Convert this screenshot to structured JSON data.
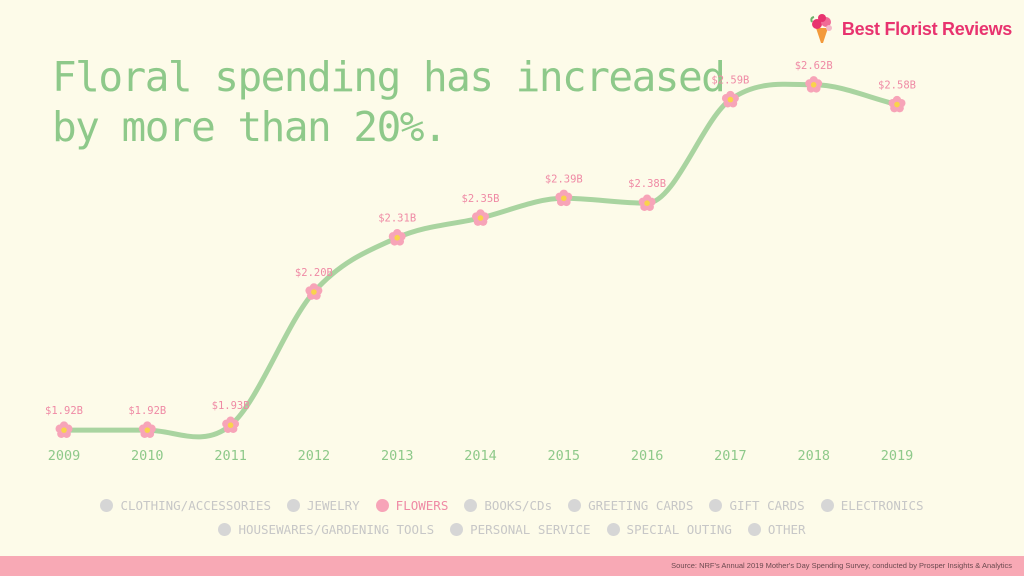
{
  "brand": {
    "name": "Best Florist Reviews",
    "icon": "bouquet-icon"
  },
  "headline": {
    "line1": "Floral spending has increased",
    "line2": "by more than 20%."
  },
  "colors": {
    "background": "#fdfbe9",
    "line": "#a9d4a0",
    "headline": "#8ec98a",
    "marker": "#f7a4b8",
    "marker_center": "#f9d34b",
    "labels": "#ef8aa5",
    "axis": "#8ec98a",
    "legend_inactive": "#d6d6d6",
    "footer": "#f8a9b5",
    "brand": "#e8336f"
  },
  "chart_data": {
    "type": "line",
    "title": "Floral spending has increased by more than 20%.",
    "xlabel": "",
    "ylabel": "",
    "categories": [
      "2009",
      "2010",
      "2011",
      "2012",
      "2013",
      "2014",
      "2015",
      "2016",
      "2017",
      "2018",
      "2019"
    ],
    "series": [
      {
        "name": "FLOWERS",
        "values": [
          1.92,
          1.92,
          1.93,
          2.2,
          2.31,
          2.35,
          2.39,
          2.38,
          2.59,
          2.62,
          2.58
        ],
        "labels": [
          "$1.92B",
          "$1.92B",
          "$1.93B",
          "$2.20B",
          "$2.31B",
          "$2.35B",
          "$2.39B",
          "$2.38B",
          "$2.59B",
          "$2.62B",
          "$2.58B"
        ]
      }
    ],
    "ylim": [
      1.9,
      2.65
    ],
    "grid": false,
    "legend_position": "bottom",
    "marker": "flower"
  },
  "legend": {
    "row1": [
      {
        "label": "CLOTHING/ACCESSORIES",
        "active": false
      },
      {
        "label": "JEWELRY",
        "active": false
      },
      {
        "label": "FLOWERS",
        "active": true
      },
      {
        "label": "BOOKS/CDs",
        "active": false
      },
      {
        "label": "GREETING CARDS",
        "active": false
      },
      {
        "label": "GIFT CARDS",
        "active": false
      },
      {
        "label": "ELECTRONICS",
        "active": false
      }
    ],
    "row2": [
      {
        "label": "HOUSEWARES/GARDENING TOOLS",
        "active": false
      },
      {
        "label": "PERSONAL SERVICE",
        "active": false
      },
      {
        "label": "SPECIAL OUTING",
        "active": false
      },
      {
        "label": "OTHER",
        "active": false
      }
    ]
  },
  "footer": {
    "source": "Source: NRF's Annual 2019 Mother's Day Spending Survey, conducted by Prosper Insights & Analytics"
  }
}
